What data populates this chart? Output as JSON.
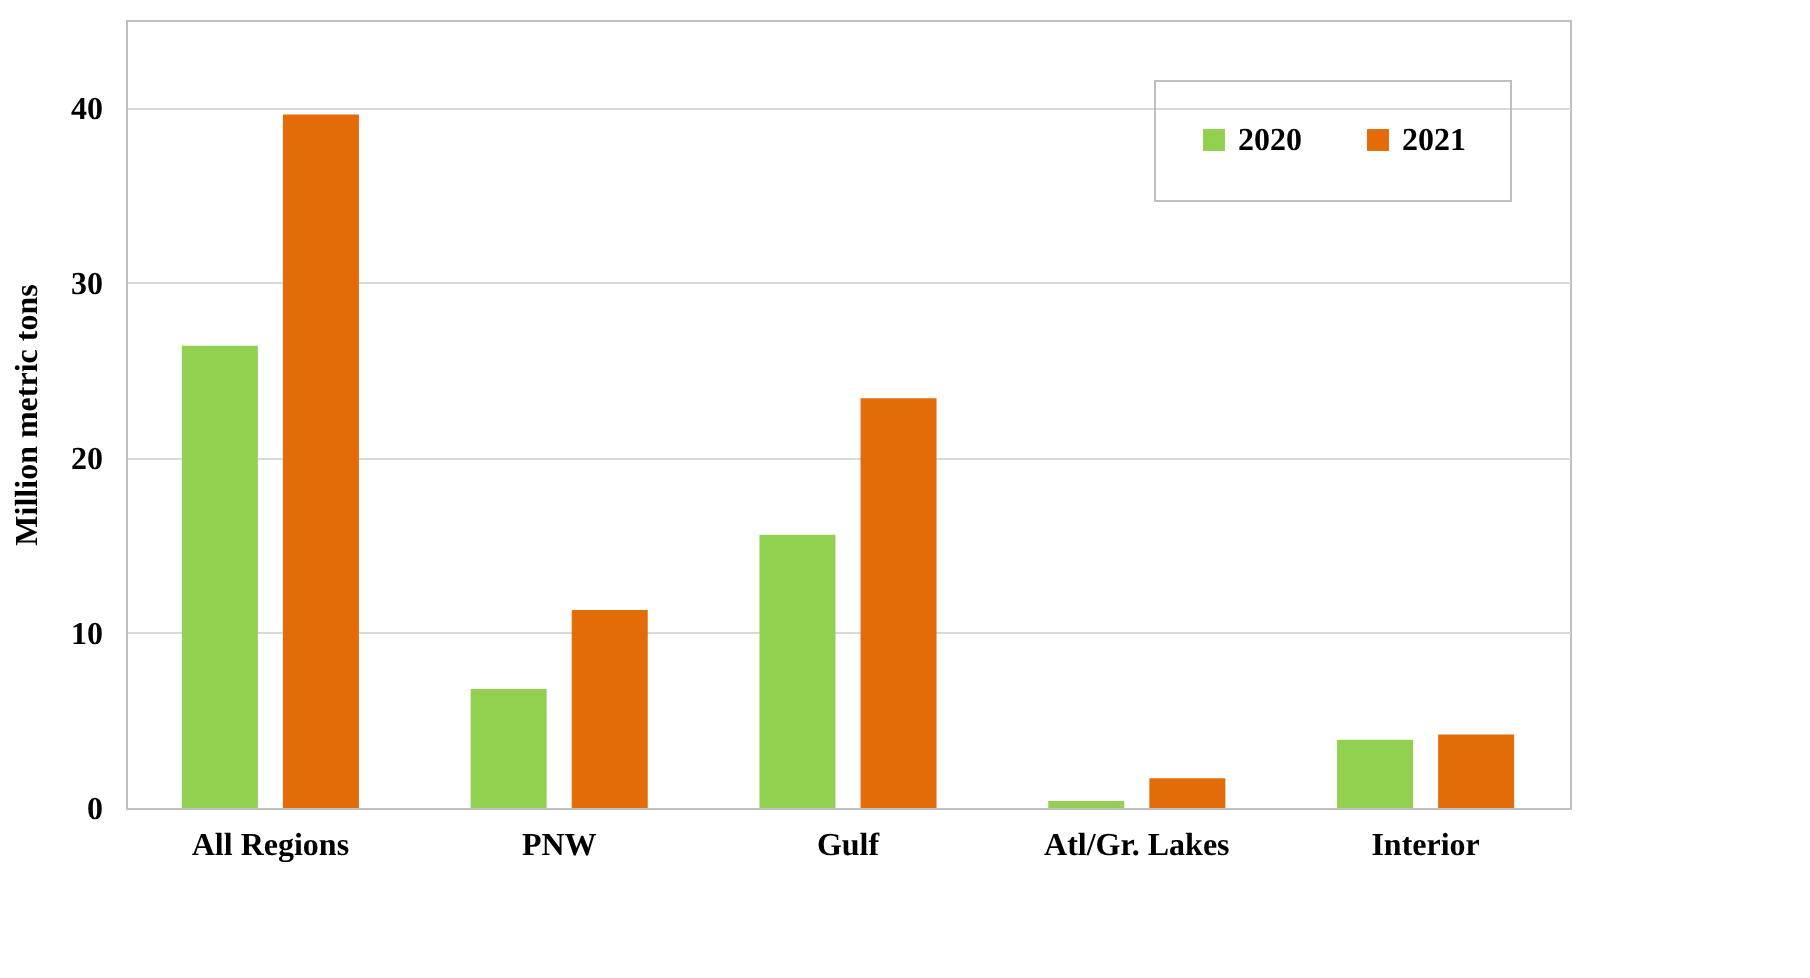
{
  "chart_data": {
    "type": "bar",
    "ylabel": "Million metric tons",
    "categories": [
      "All Regions",
      "PNW",
      "Gulf",
      "Atl/Gr. Lakes",
      "Interior"
    ],
    "series": [
      {
        "name": "2020",
        "color": "#92d050",
        "values": [
          26.4,
          6.8,
          15.6,
          0.4,
          3.9
        ]
      },
      {
        "name": "2021",
        "color": "#e36c09",
        "values": [
          39.6,
          11.3,
          23.4,
          1.7,
          4.2
        ]
      }
    ],
    "ylim": [
      0,
      45
    ],
    "yticks": [
      0,
      10,
      20,
      30,
      40
    ],
    "grid": "y",
    "legend": "top right"
  }
}
